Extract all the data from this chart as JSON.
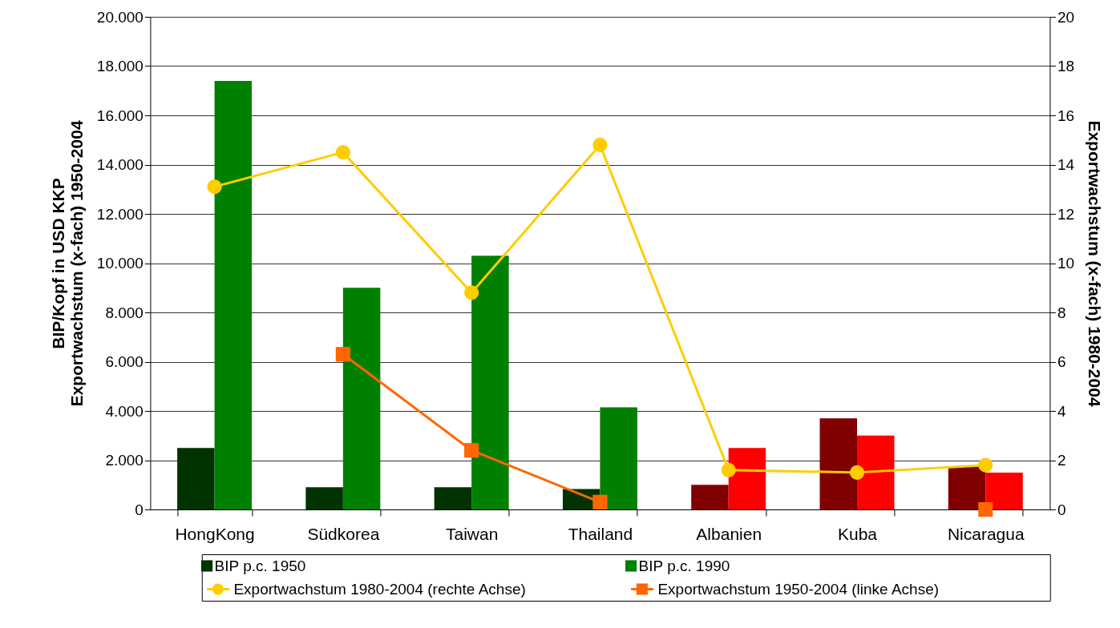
{
  "chart_data": {
    "type": "bar",
    "categories": [
      "HongKong",
      "Südkorea",
      "Taiwan",
      "Thailand",
      "Albanien",
      "Kuba",
      "Nicaragua"
    ],
    "ylabel": "BIP/Kopf in USD KKP\nExportwachstum (x-fach) 1950-2004",
    "y2label": "Exportwachstum (x-fach) 1980-2004",
    "series": [
      {
        "name": "BIP p.c. 1950",
        "color": "#003300",
        "colors": [
          "#003300",
          "#003300",
          "#003300",
          "#003300",
          "#800000",
          "#800000",
          "#800000"
        ],
        "values": [
          2500,
          900,
          900,
          830,
          1000,
          3700,
          1750
        ]
      },
      {
        "name": "BIP p.c. 1990",
        "color": "#008000",
        "colors": [
          "#008000",
          "#008000",
          "#008000",
          "#008000",
          "#ff0000",
          "#ff0000",
          "#ff0000"
        ],
        "values": [
          17400,
          9000,
          10300,
          4150,
          2500,
          3000,
          1500
        ]
      },
      {
        "name": "Exportwachstum 1980-2004 (rechte Achse)",
        "type": "line",
        "axis": "y2",
        "marker": "circle",
        "color": "#ffcc00",
        "values": [
          13.1,
          14.5,
          8.8,
          14.8,
          1.6,
          1.5,
          1.8
        ]
      },
      {
        "name": "Exportwachstum 1950-2004 (linke Achse)",
        "type": "line",
        "marker": "square",
        "color": "#ff6600",
        "values": [
          null,
          6300,
          2400,
          300,
          null,
          null,
          0
        ]
      }
    ],
    "ylim": [
      0,
      20000
    ],
    "yticks": [
      0,
      {
        "value": 2000,
        "label": "2.000"
      },
      {
        "value": 4000,
        "label": "4.000"
      },
      {
        "value": 6000,
        "label": "6.000"
      },
      {
        "value": 8000,
        "label": "8.000"
      },
      {
        "value": 10000,
        "label": "10.000"
      },
      {
        "value": 12000,
        "label": "12.000"
      },
      {
        "value": 14000,
        "label": "14.000"
      },
      {
        "value": 16000,
        "label": "16.000"
      },
      {
        "value": 18000,
        "label": "18.000"
      },
      {
        "value": 20000,
        "label": "20.000"
      }
    ],
    "y2lim": [
      0,
      20
    ],
    "y2ticks": [
      0,
      2,
      4,
      6,
      8,
      10,
      12,
      14,
      16,
      18,
      20
    ],
    "grid": "y",
    "legend": "bottom"
  }
}
